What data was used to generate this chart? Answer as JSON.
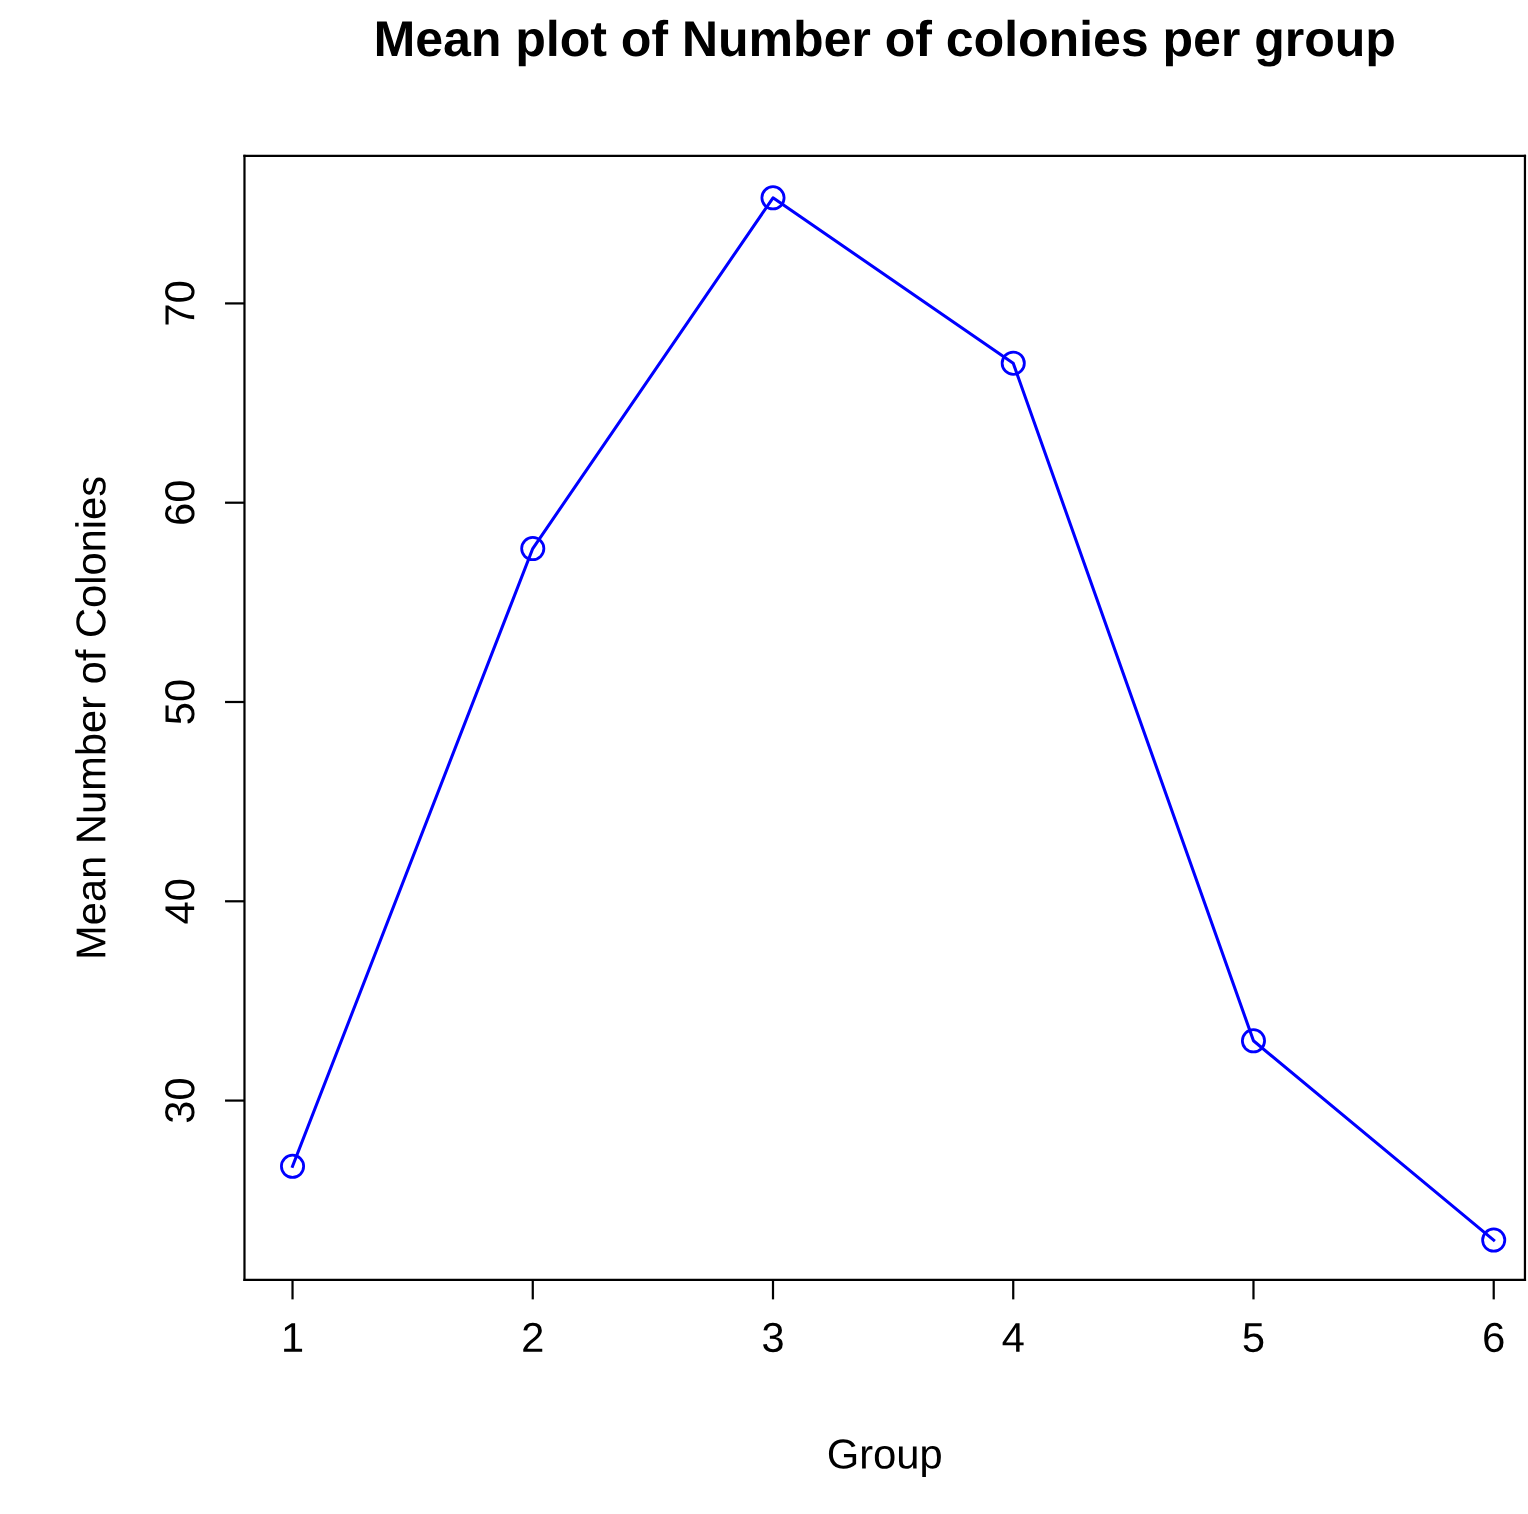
{
  "chart_data": {
    "type": "line",
    "title": "Mean plot of Number of colonies per group",
    "xlabel": "Group",
    "ylabel": "Mean Number of Colonies",
    "x": [
      1,
      2,
      3,
      4,
      5,
      6
    ],
    "series": [
      {
        "color": "#0000ff",
        "values": [
          26.7,
          57.7,
          75.3,
          67.0,
          33.0,
          23.0
        ]
      }
    ],
    "xlim": [
      0.8,
      6.13
    ],
    "xticks": [
      1,
      2,
      3,
      4,
      5,
      6
    ],
    "ylim": [
      21.0,
      77.4
    ],
    "yticks": [
      30,
      40,
      50,
      60,
      70
    ],
    "marker": "circle",
    "line_style": "solid",
    "grid": false,
    "legend": false
  }
}
